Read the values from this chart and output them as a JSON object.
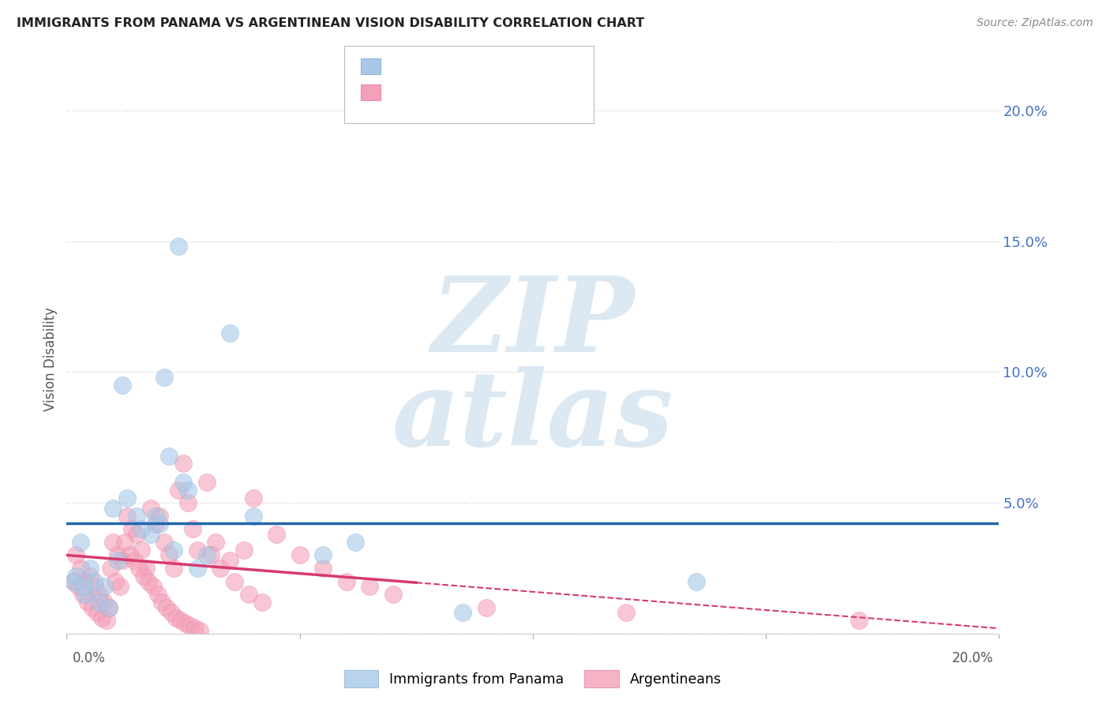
{
  "title": "IMMIGRANTS FROM PANAMA VS ARGENTINEAN VISION DISABILITY CORRELATION CHART",
  "source": "Source: ZipAtlas.com",
  "ylabel": "Vision Disability",
  "xlim": [
    0,
    20
  ],
  "ylim": [
    0,
    21
  ],
  "blue_color": "#a8c8e8",
  "pink_color": "#f4a0b8",
  "blue_line_color": "#2166ac",
  "pink_line_color": "#d63a6e",
  "ytick_color": "#4472c4",
  "blue_scatter_x": [
    1.2,
    2.1,
    2.4,
    0.3,
    0.5,
    0.6,
    0.8,
    1.0,
    1.5,
    1.8,
    2.0,
    2.2,
    2.6,
    3.5,
    5.5,
    6.2,
    8.5,
    13.5,
    0.2,
    0.4,
    0.7,
    0.9,
    1.1,
    1.3,
    1.6,
    1.9,
    2.3,
    2.5,
    2.8,
    3.0,
    0.15,
    0.35,
    4.0
  ],
  "blue_scatter_y": [
    9.5,
    9.8,
    14.8,
    3.5,
    2.5,
    2.0,
    1.8,
    4.8,
    4.5,
    3.8,
    4.2,
    6.8,
    5.5,
    11.5,
    3.0,
    3.5,
    0.8,
    2.0,
    2.2,
    1.5,
    1.2,
    1.0,
    2.8,
    5.2,
    4.0,
    4.5,
    3.2,
    5.8,
    2.5,
    3.0,
    2.0,
    1.8,
    4.5
  ],
  "pink_scatter_x": [
    0.2,
    0.3,
    0.4,
    0.5,
    0.6,
    0.7,
    0.8,
    0.9,
    1.0,
    1.1,
    1.2,
    1.3,
    1.4,
    1.5,
    1.6,
    1.7,
    1.8,
    1.9,
    2.0,
    2.1,
    2.2,
    2.3,
    2.4,
    2.5,
    2.6,
    2.7,
    2.8,
    3.0,
    3.2,
    3.5,
    3.8,
    4.0,
    4.5,
    5.0,
    5.5,
    6.0,
    6.5,
    7.0,
    0.15,
    0.25,
    0.35,
    0.45,
    0.55,
    0.65,
    0.75,
    0.85,
    0.95,
    1.05,
    1.15,
    1.25,
    1.35,
    1.45,
    1.55,
    1.65,
    1.75,
    1.85,
    1.95,
    2.05,
    2.15,
    2.25,
    2.35,
    2.45,
    2.55,
    2.65,
    2.75,
    2.85,
    3.1,
    3.3,
    3.6,
    3.9,
    4.2,
    9.0,
    12.0,
    17.0
  ],
  "pink_scatter_y": [
    3.0,
    2.5,
    2.0,
    2.2,
    1.8,
    1.5,
    1.2,
    1.0,
    3.5,
    3.0,
    2.8,
    4.5,
    4.0,
    3.8,
    3.2,
    2.5,
    4.8,
    4.2,
    4.5,
    3.5,
    3.0,
    2.5,
    5.5,
    6.5,
    5.0,
    4.0,
    3.2,
    5.8,
    3.5,
    2.8,
    3.2,
    5.2,
    3.8,
    3.0,
    2.5,
    2.0,
    1.8,
    1.5,
    2.0,
    1.8,
    1.5,
    1.2,
    1.0,
    0.8,
    0.6,
    0.5,
    2.5,
    2.0,
    1.8,
    3.5,
    3.0,
    2.8,
    2.5,
    2.2,
    2.0,
    1.8,
    1.5,
    1.2,
    1.0,
    0.8,
    0.6,
    0.5,
    0.4,
    0.3,
    0.2,
    0.1,
    3.0,
    2.5,
    2.0,
    1.5,
    1.2,
    1.0,
    0.8,
    0.5
  ]
}
